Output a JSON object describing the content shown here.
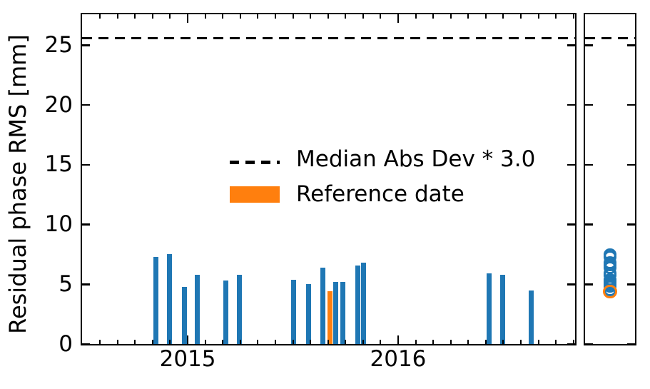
{
  "figure": {
    "background": "#ffffff",
    "colors": {
      "bar": "#1f77b4",
      "reference": "#ff7f0e",
      "line": "#000000"
    },
    "legend": {
      "items": [
        {
          "label": "Median Abs Dev * 3.0",
          "type": "dashed-line",
          "color": "#000000"
        },
        {
          "label": "Reference date",
          "type": "filled-box",
          "color": "#ff7f0e"
        }
      ]
    }
  },
  "chart_data": {
    "type": "bar",
    "title": "",
    "xlabel": "",
    "ylabel": "Residual phase RMS [mm]",
    "ylim": [
      0,
      27.6
    ],
    "yticks": [
      0,
      5,
      10,
      15,
      20,
      25
    ],
    "xlim_decimal_years": [
      2014.498,
      2016.841
    ],
    "xticks": [
      {
        "label": "2015",
        "x": 2015.0
      },
      {
        "label": "2016",
        "x": 2016.0
      }
    ],
    "minor_xticks": "monthly",
    "grid": false,
    "legend_position": "center",
    "threshold_line": {
      "label": "Median Abs Dev * 3.0",
      "y": 25.6,
      "style": "dashed",
      "color": "#000000"
    },
    "bars": [
      {
        "x": 2014.848,
        "y": 7.3,
        "reference": false
      },
      {
        "x": 2014.915,
        "y": 7.5,
        "reference": false
      },
      {
        "x": 2014.983,
        "y": 4.8,
        "reference": false
      },
      {
        "x": 2015.047,
        "y": 5.8,
        "reference": false
      },
      {
        "x": 2015.18,
        "y": 5.3,
        "reference": false
      },
      {
        "x": 2015.247,
        "y": 5.8,
        "reference": false
      },
      {
        "x": 2015.505,
        "y": 5.4,
        "reference": false
      },
      {
        "x": 2015.573,
        "y": 5.0,
        "reference": false
      },
      {
        "x": 2015.641,
        "y": 6.4,
        "reference": false
      },
      {
        "x": 2015.675,
        "y": 4.4,
        "reference": true
      },
      {
        "x": 2015.705,
        "y": 5.2,
        "reference": false
      },
      {
        "x": 2015.736,
        "y": 5.2,
        "reference": false
      },
      {
        "x": 2015.807,
        "y": 6.6,
        "reference": false
      },
      {
        "x": 2015.837,
        "y": 6.8,
        "reference": false
      },
      {
        "x": 2016.431,
        "y": 5.9,
        "reference": false
      },
      {
        "x": 2016.498,
        "y": 5.8,
        "reference": false
      },
      {
        "x": 2016.631,
        "y": 4.5,
        "reference": false
      }
    ],
    "side_panel": {
      "type": "scatter",
      "marker": "open-circle",
      "shares_y_axis": true,
      "values": [
        7.3,
        7.5,
        4.8,
        5.8,
        5.3,
        5.8,
        5.4,
        5.0,
        6.4,
        5.2,
        5.2,
        6.6,
        6.8,
        5.9,
        5.8,
        4.5
      ],
      "reference_value": 4.4
    }
  }
}
